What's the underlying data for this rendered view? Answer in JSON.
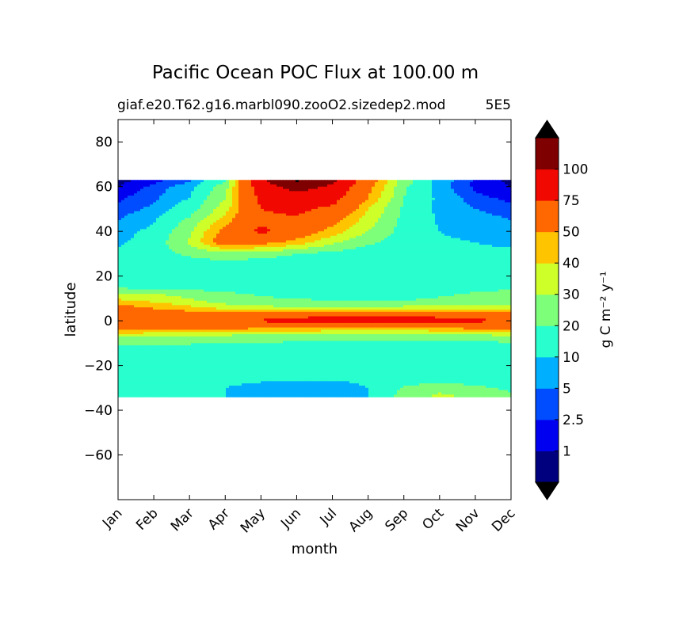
{
  "chart_data": {
    "type": "heatmap",
    "plot_style": "filled-contour",
    "title": "Pacific Ocean POC Flux at 100.00 m",
    "subtitle_left": "giaf.e20.T62.g16.marbl090.zooO2.sizedep2.mod",
    "subtitle_right": "5E5",
    "xlabel": "month",
    "ylabel": "latitude",
    "x_categories": [
      "Jan",
      "Feb",
      "Mar",
      "Apr",
      "May",
      "Jun",
      "Jul",
      "Aug",
      "Sep",
      "Oct",
      "Nov",
      "Dec"
    ],
    "xlim": [
      0,
      11
    ],
    "ylim": [
      -80,
      90
    ],
    "y_ticks": [
      80,
      60,
      40,
      20,
      0,
      -20,
      -40,
      -60
    ],
    "y_tick_labels": [
      "80",
      "60",
      "40",
      "20",
      "0",
      "−20",
      "−40",
      "−60"
    ],
    "data_lat_range": [
      -34,
      63
    ],
    "colorbar": {
      "label": "g C m⁻² y⁻¹",
      "extend": "both",
      "levels": [
        0,
        1,
        2.5,
        5,
        10,
        20,
        30,
        40,
        50,
        75,
        100,
        125
      ],
      "tick_labels": [
        "1",
        "2.5",
        "5",
        "10",
        "20",
        "30",
        "40",
        "50",
        "75",
        "100"
      ],
      "colors": [
        "#00007f",
        "#0000f1",
        "#004cff",
        "#00b0ff",
        "#29ffce",
        "#7dff7a",
        "#ceff29",
        "#ffc400",
        "#ff6800",
        "#f10800",
        "#7f0000"
      ],
      "under_color": "#000000",
      "over_color": "#000000"
    },
    "grid": false,
    "lat_rows": [
      63,
      60,
      55,
      50,
      45,
      40,
      35,
      30,
      25,
      20,
      15,
      12,
      9,
      6,
      3,
      0,
      -3,
      -6,
      -9,
      -12,
      -16,
      -20,
      -25,
      -30,
      -34
    ],
    "values": [
      [
        0.5,
        1.5,
        4,
        18,
        95,
        130,
        110,
        60,
        25,
        7,
        2,
        0.5
      ],
      [
        1,
        3,
        7,
        25,
        90,
        110,
        95,
        55,
        22,
        6,
        2,
        1
      ],
      [
        2,
        4,
        10,
        30,
        80,
        90,
        85,
        50,
        20,
        8,
        3,
        2
      ],
      [
        3,
        6,
        15,
        35,
        75,
        80,
        70,
        40,
        18,
        8,
        5,
        3
      ],
      [
        5,
        9,
        22,
        45,
        70,
        72,
        55,
        35,
        17,
        9,
        7,
        5
      ],
      [
        7,
        12,
        28,
        55,
        80,
        62,
        45,
        30,
        16,
        10,
        8,
        7
      ],
      [
        9,
        14,
        32,
        60,
        55,
        45,
        32,
        22,
        14,
        11,
        10,
        9
      ],
      [
        11,
        15,
        22,
        26,
        24,
        20,
        17,
        14,
        12,
        11,
        11,
        11
      ],
      [
        12,
        13,
        15,
        16,
        15,
        14,
        13,
        12,
        12,
        12,
        12,
        12
      ],
      [
        13,
        13,
        13,
        13,
        13,
        13,
        13,
        13,
        13,
        13,
        13,
        13
      ],
      [
        18,
        17,
        16,
        15,
        14,
        14,
        14,
        14,
        14,
        15,
        17,
        19
      ],
      [
        32,
        30,
        26,
        22,
        19,
        17,
        17,
        17,
        18,
        19,
        21,
        22
      ],
      [
        42,
        38,
        32,
        25,
        22,
        21,
        20,
        20,
        20,
        21,
        22,
        23
      ],
      [
        55,
        48,
        42,
        35,
        32,
        31,
        30,
        31,
        32,
        33,
        34,
        35
      ],
      [
        60,
        58,
        57,
        56,
        57,
        62,
        66,
        68,
        67,
        64,
        61,
        58
      ],
      [
        72,
        74,
        76,
        76,
        78,
        85,
        90,
        92,
        90,
        85,
        80,
        74
      ],
      [
        60,
        58,
        56,
        55,
        53,
        52,
        50,
        50,
        50,
        52,
        55,
        57
      ],
      [
        37,
        36,
        34,
        32,
        31,
        30,
        29,
        28,
        28,
        29,
        31,
        33
      ],
      [
        23,
        22,
        22,
        21,
        21,
        20,
        20,
        19,
        19,
        19,
        20,
        21
      ],
      [
        17,
        18,
        18,
        18,
        18,
        18,
        17,
        16,
        15,
        15,
        16,
        17
      ],
      [
        14,
        14,
        14,
        14,
        14,
        13,
        13,
        13,
        13,
        13,
        13,
        13
      ],
      [
        12,
        12,
        12,
        12,
        12,
        12,
        12,
        12,
        12,
        12,
        12,
        12
      ],
      [
        11,
        11,
        11,
        11,
        11,
        11,
        11,
        11,
        12,
        13,
        12,
        11
      ],
      [
        12,
        12,
        11,
        10,
        9,
        8,
        8,
        10,
        21,
        26,
        22,
        18
      ],
      [
        13,
        12,
        11,
        10,
        8,
        7,
        7,
        10,
        24,
        33,
        27,
        22
      ]
    ]
  }
}
